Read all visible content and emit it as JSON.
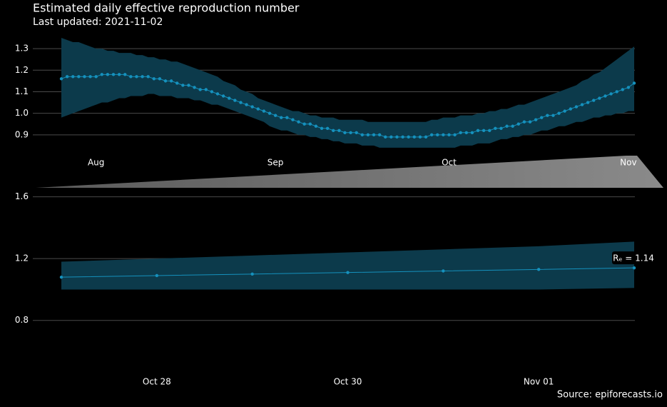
{
  "title": "Estimated daily effective reproduction number",
  "subtitle": "Last updated: 2021-11-02",
  "source": "Source: epiforecasts.io",
  "chart_data": [
    {
      "type": "line",
      "categories": [
        null,
        null,
        null,
        null,
        null,
        null,
        "Aug",
        null,
        null,
        null,
        null,
        null,
        null,
        null,
        null,
        null,
        null,
        null,
        null,
        null,
        null,
        null,
        null,
        null,
        null,
        null,
        null,
        null,
        null,
        null,
        null,
        null,
        null,
        null,
        null,
        null,
        null,
        "Sep",
        null,
        null,
        null,
        null,
        null,
        null,
        null,
        null,
        null,
        null,
        null,
        null,
        null,
        null,
        null,
        null,
        null,
        null,
        null,
        null,
        null,
        null,
        null,
        null,
        null,
        null,
        null,
        null,
        null,
        "Oct",
        null,
        null,
        null,
        null,
        null,
        null,
        null,
        null,
        null,
        null,
        null,
        null,
        null,
        null,
        null,
        null,
        null,
        null,
        null,
        null,
        null,
        null,
        null,
        null,
        null,
        null,
        null,
        null,
        null,
        null,
        "Nov",
        null
      ],
      "series": [
        {
          "color": "#1591bd",
          "band_color": "#0c3a4b",
          "values": [
            1.16,
            1.17,
            1.17,
            1.17,
            1.17,
            1.17,
            1.17,
            1.18,
            1.18,
            1.18,
            1.18,
            1.18,
            1.17,
            1.17,
            1.17,
            1.17,
            1.16,
            1.16,
            1.15,
            1.15,
            1.14,
            1.13,
            1.13,
            1.12,
            1.11,
            1.11,
            1.1,
            1.09,
            1.08,
            1.07,
            1.06,
            1.05,
            1.04,
            1.03,
            1.02,
            1.01,
            1.0,
            0.99,
            0.98,
            0.98,
            0.97,
            0.96,
            0.95,
            0.95,
            0.94,
            0.93,
            0.93,
            0.92,
            0.92,
            0.91,
            0.91,
            0.91,
            0.9,
            0.9,
            0.9,
            0.9,
            0.89,
            0.89,
            0.89,
            0.89,
            0.89,
            0.89,
            0.89,
            0.89,
            0.9,
            0.9,
            0.9,
            0.9,
            0.9,
            0.91,
            0.91,
            0.91,
            0.92,
            0.92,
            0.92,
            0.93,
            0.93,
            0.94,
            0.94,
            0.95,
            0.96,
            0.96,
            0.97,
            0.98,
            0.99,
            0.99,
            1.0,
            1.01,
            1.02,
            1.03,
            1.04,
            1.05,
            1.06,
            1.07,
            1.08,
            1.09,
            1.1,
            1.11,
            1.12,
            1.14
          ],
          "lower": [
            0.98,
            0.99,
            1.0,
            1.01,
            1.02,
            1.03,
            1.04,
            1.05,
            1.05,
            1.06,
            1.07,
            1.07,
            1.08,
            1.08,
            1.08,
            1.09,
            1.09,
            1.08,
            1.08,
            1.08,
            1.07,
            1.07,
            1.07,
            1.06,
            1.06,
            1.05,
            1.04,
            1.04,
            1.03,
            1.02,
            1.01,
            1.0,
            0.99,
            0.98,
            0.97,
            0.96,
            0.94,
            0.93,
            0.92,
            0.92,
            0.91,
            0.9,
            0.9,
            0.89,
            0.89,
            0.88,
            0.88,
            0.87,
            0.87,
            0.86,
            0.86,
            0.86,
            0.85,
            0.85,
            0.85,
            0.84,
            0.84,
            0.84,
            0.84,
            0.84,
            0.84,
            0.84,
            0.84,
            0.84,
            0.84,
            0.84,
            0.84,
            0.84,
            0.84,
            0.85,
            0.85,
            0.85,
            0.86,
            0.86,
            0.86,
            0.87,
            0.88,
            0.88,
            0.89,
            0.89,
            0.9,
            0.9,
            0.91,
            0.92,
            0.92,
            0.93,
            0.94,
            0.94,
            0.95,
            0.96,
            0.96,
            0.97,
            0.98,
            0.98,
            0.99,
            0.99,
            1.0,
            1.0,
            1.01,
            1.01
          ],
          "upper": [
            1.35,
            1.34,
            1.33,
            1.33,
            1.32,
            1.31,
            1.3,
            1.3,
            1.29,
            1.29,
            1.28,
            1.28,
            1.28,
            1.27,
            1.27,
            1.26,
            1.26,
            1.25,
            1.25,
            1.24,
            1.24,
            1.23,
            1.22,
            1.21,
            1.2,
            1.19,
            1.18,
            1.17,
            1.15,
            1.14,
            1.13,
            1.11,
            1.1,
            1.09,
            1.07,
            1.06,
            1.05,
            1.04,
            1.03,
            1.02,
            1.01,
            1.01,
            1.0,
            0.99,
            0.99,
            0.98,
            0.98,
            0.98,
            0.97,
            0.97,
            0.97,
            0.97,
            0.97,
            0.96,
            0.96,
            0.96,
            0.96,
            0.96,
            0.96,
            0.96,
            0.96,
            0.96,
            0.96,
            0.96,
            0.97,
            0.97,
            0.98,
            0.98,
            0.98,
            0.99,
            0.99,
            0.99,
            1.0,
            1.0,
            1.01,
            1.01,
            1.02,
            1.02,
            1.03,
            1.04,
            1.04,
            1.05,
            1.06,
            1.07,
            1.08,
            1.09,
            1.1,
            1.11,
            1.12,
            1.13,
            1.15,
            1.16,
            1.18,
            1.19,
            1.21,
            1.23,
            1.25,
            1.27,
            1.29,
            1.31
          ]
        }
      ],
      "ylim": [
        0.8,
        1.36
      ],
      "yticks": [
        0.9,
        {
          "value": 1,
          "label": "1.0"
        },
        1.1,
        1.2,
        1.3
      ],
      "grid": true
    },
    {
      "type": "line",
      "categories": [
        null,
        "Oct 28",
        null,
        "Oct 30",
        null,
        "Nov 01",
        null
      ],
      "series": [
        {
          "color": "#1591bd",
          "band_color": "#0c3a4b",
          "values": [
            1.08,
            1.09,
            1.1,
            1.11,
            1.12,
            1.13,
            1.14
          ],
          "lower": [
            1.0,
            1.0,
            1.0,
            1.0,
            1.0,
            1.0,
            1.01
          ],
          "upper": [
            1.18,
            1.2,
            1.22,
            1.24,
            1.26,
            1.28,
            1.31
          ]
        }
      ],
      "annotation": "Rₑ = 1.14",
      "ylim": [
        0.6,
        1.7
      ],
      "yticks": [
        0.8,
        1.2,
        1.6
      ],
      "grid": true
    }
  ]
}
